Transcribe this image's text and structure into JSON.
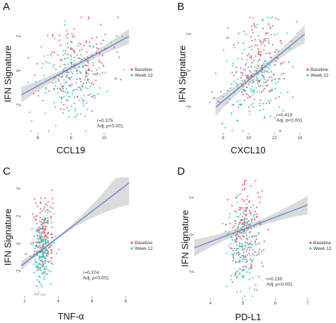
{
  "colors": {
    "baseline": "#e8556b",
    "week12": "#35c9b6",
    "fit": "#4f78d6",
    "band": "#bdbdbd"
  },
  "chart_data": [
    {
      "type": "scatter",
      "panel": "A",
      "xlabel": "CCL19",
      "ylabel": "IFN Signature",
      "xlim": [
        5.0,
        11.5
      ],
      "ylim": [
        -3.6,
        3.2
      ],
      "xticks": [
        6,
        8,
        10
      ],
      "xtick_labels": [
        "6",
        "8",
        "10"
      ],
      "yticks": [
        -2,
        0,
        2
      ],
      "ytick_labels": [
        "-2",
        "0",
        "2"
      ],
      "legend_position": "right",
      "series": [
        {
          "name": "Baseline",
          "center": [
            8.4,
            0.3
          ],
          "spread": [
            1.4,
            1.6
          ],
          "n": 170,
          "seed": 11
        },
        {
          "name": "Week 12",
          "center": [
            8.2,
            -0.5
          ],
          "spread": [
            1.4,
            1.6
          ],
          "n": 170,
          "seed": 12
        }
      ],
      "fit": {
        "x": [
          5.0,
          11.5
        ],
        "y": [
          -1.4,
          2.0
        ],
        "band": [
          0.45,
          0.15,
          0.45
        ]
      },
      "annotations": [
        "r=0.375",
        "Adj. p<0.001"
      ]
    },
    {
      "type": "scatter",
      "panel": "B",
      "xlabel": "CXCL10",
      "ylabel": "IFN Signature",
      "xlim": [
        5.5,
        14.4
      ],
      "ylim": [
        -3.4,
        3.0
      ],
      "xticks": [
        8,
        10,
        12,
        14
      ],
      "xtick_labels": [
        "8",
        "10",
        "12",
        "14"
      ],
      "yticks": [
        -2,
        0,
        2
      ],
      "ytick_labels": [
        "-2",
        "0",
        "2"
      ],
      "legend_position": "right",
      "series": [
        {
          "name": "Baseline",
          "center": [
            10.8,
            0.2
          ],
          "spread": [
            1.6,
            1.5
          ],
          "n": 170,
          "seed": 21
        },
        {
          "name": "Week 12",
          "center": [
            10.5,
            -0.4
          ],
          "spread": [
            1.6,
            1.5
          ],
          "n": 170,
          "seed": 22
        }
      ],
      "fit": {
        "x": [
          7.4,
          14.4
        ],
        "y": [
          -2.0,
          2.0
        ],
        "band": [
          0.5,
          0.15,
          0.5
        ]
      },
      "annotations": [
        "r=0.419",
        "Adj. p<0.001"
      ]
    },
    {
      "type": "scatter",
      "panel": "C",
      "xlabel": "TNF-α",
      "ylabel": "IFN Signature",
      "xlim": [
        1.8,
        8.2
      ],
      "ylim": [
        -3.8,
        4.8
      ],
      "xticks": [
        2,
        4,
        6,
        8
      ],
      "xtick_labels": [
        "2",
        "4",
        "6",
        "8"
      ],
      "yticks": [
        -2,
        0,
        2,
        4
      ],
      "ytick_labels": [
        "-2",
        "0",
        "2",
        "4"
      ],
      "legend_position": "right",
      "series": [
        {
          "name": "Baseline",
          "center": [
            3.1,
            0.4
          ],
          "spread": [
            0.45,
            1.6
          ],
          "n": 170,
          "seed": 31
        },
        {
          "name": "Week 12",
          "center": [
            3.0,
            -0.5
          ],
          "spread": [
            0.45,
            1.6
          ],
          "n": 170,
          "seed": 32
        }
      ],
      "fit": {
        "x": [
          1.8,
          8.2
        ],
        "y": [
          -1.6,
          4.4
        ],
        "band": [
          0.35,
          0.2,
          1.6
        ]
      },
      "annotations": [
        "r=0.374",
        "Adj. p<0.001"
      ]
    },
    {
      "type": "scatter",
      "panel": "D",
      "xlabel": "PD-L1",
      "ylabel": "IFN Signature",
      "xlim": [
        3.5,
        7.0
      ],
      "ylim": [
        -3.4,
        3.0
      ],
      "xticks": [
        4,
        5,
        6,
        7
      ],
      "xtick_labels": [
        "4",
        "5",
        "6",
        "7"
      ],
      "yticks": [
        -2,
        0,
        2
      ],
      "ytick_labels": [
        "-2",
        "0",
        "2"
      ],
      "legend_position": "right",
      "series": [
        {
          "name": "Baseline",
          "center": [
            5.1,
            0.2
          ],
          "spread": [
            0.35,
            1.5
          ],
          "n": 170,
          "seed": 41
        },
        {
          "name": "Week 12",
          "center": [
            5.0,
            -0.4
          ],
          "spread": [
            0.35,
            1.5
          ],
          "n": 170,
          "seed": 42
        }
      ],
      "fit": {
        "x": [
          3.5,
          7.0
        ],
        "y": [
          -0.7,
          1.6
        ],
        "band": [
          0.45,
          0.15,
          0.5
        ]
      },
      "annotations": [
        "r=0.230",
        "Adj. p<0.001"
      ]
    }
  ]
}
